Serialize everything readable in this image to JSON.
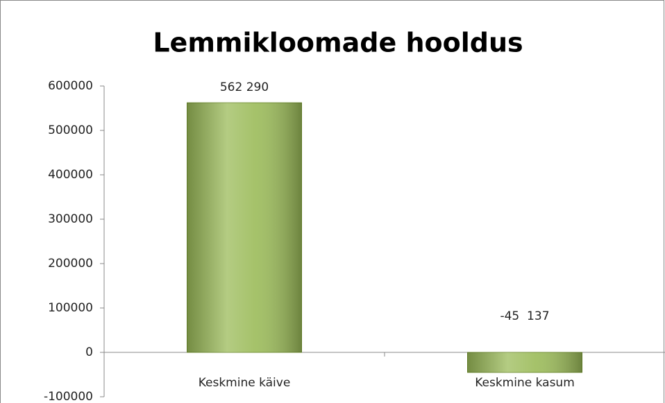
{
  "chart_data": {
    "type": "bar",
    "title": "Lemmikloomade hooldus",
    "categories": [
      "Keskmine käive",
      "Keskmine kasum"
    ],
    "values": [
      562290,
      -45137
    ],
    "value_labels": [
      "562 290",
      "-45  137"
    ],
    "color": "#9bbb59",
    "ylim": [
      -100000,
      600000
    ],
    "yticks": [
      -100000,
      0,
      100000,
      200000,
      300000,
      400000,
      500000,
      600000
    ],
    "grid": false
  }
}
